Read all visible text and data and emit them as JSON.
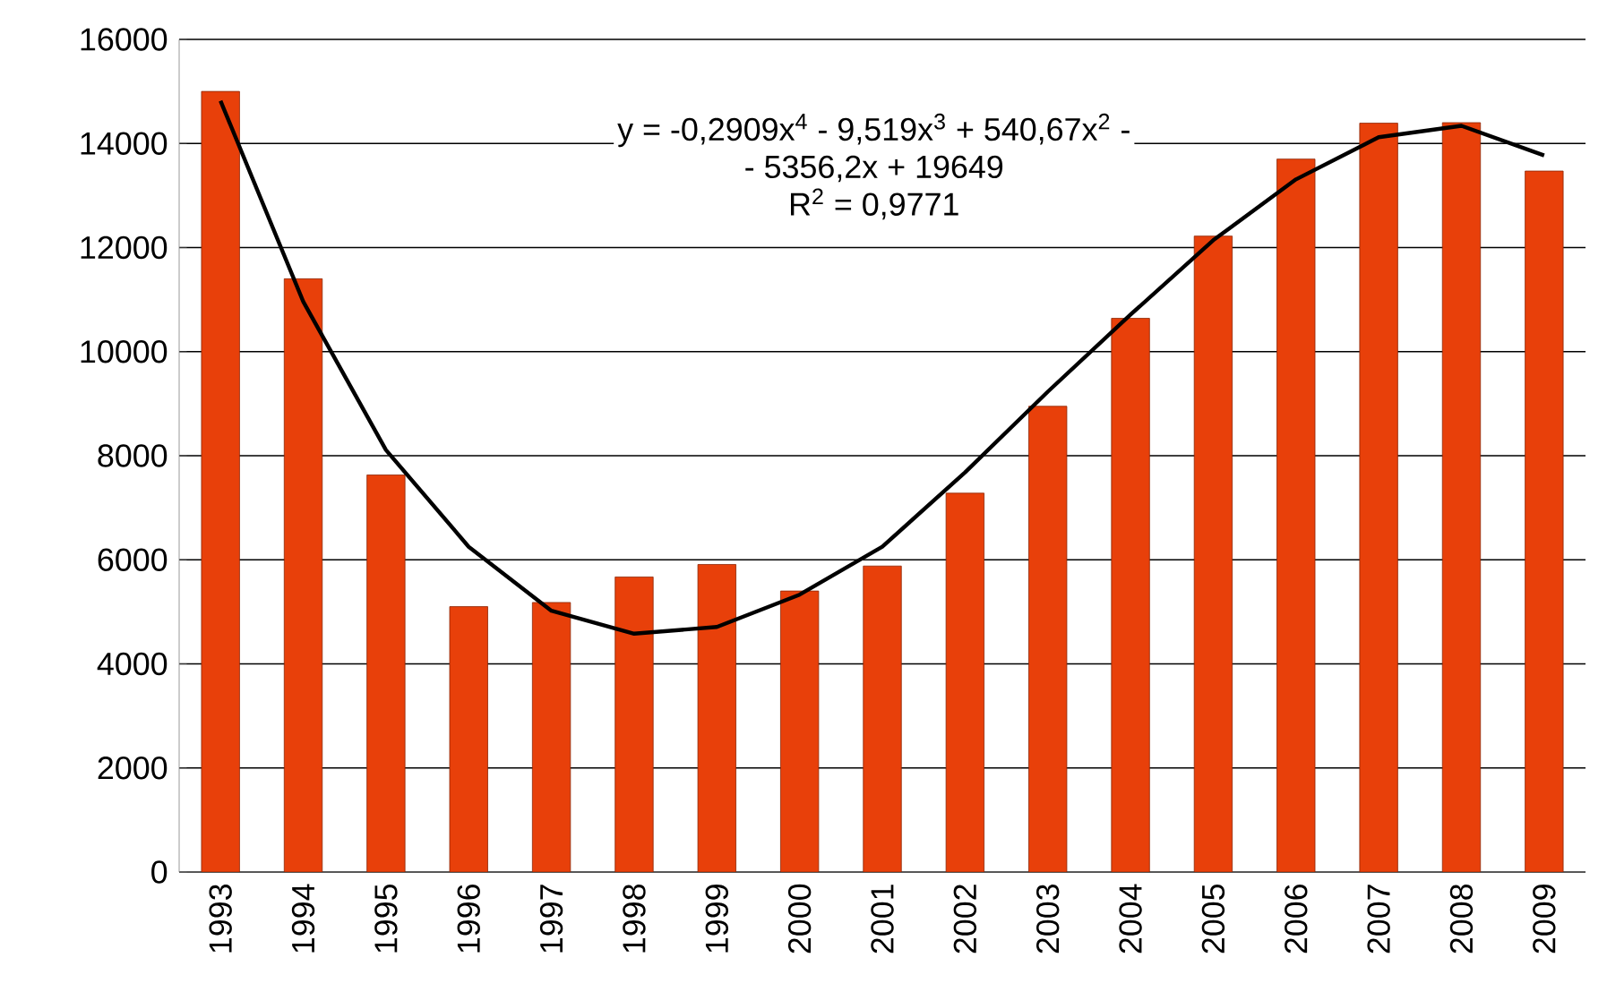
{
  "chart_data": {
    "type": "bar",
    "categories": [
      "1993",
      "1994",
      "1995",
      "1996",
      "1997",
      "1998",
      "1999",
      "2000",
      "2001",
      "2002",
      "2003",
      "2004",
      "2005",
      "2006",
      "2007",
      "2008",
      "2009"
    ],
    "series": [
      {
        "color": "#e8400a",
        "values": [
          15000,
          11400,
          7630,
          5100,
          5180,
          5670,
          5910,
          5400,
          5880,
          7280,
          8950,
          10640,
          12220,
          13700,
          14390,
          14400,
          13470
        ]
      },
      {
        "type": "line",
        "color": "#000000",
        "values": [
          14820,
          10960,
          8110,
          6250,
          5020,
          4580,
          4710,
          5330,
          6250,
          7680,
          9230,
          10710,
          12140,
          13310,
          14120,
          14340,
          13770
        ]
      }
    ],
    "ylim": [
      0,
      16000
    ],
    "yticks": [
      0,
      2000,
      4000,
      6000,
      8000,
      10000,
      12000,
      14000,
      16000
    ],
    "grid": "y",
    "marker": "none",
    "line_style": "solid",
    "annotations": [
      "y = -0,2909x$^{4}$ - 9,519x$^{3}$ + 540,67x$^{2}$ -",
      "- 5356,2x + 19649",
      "R$^{2}$ = 0,9771"
    ]
  }
}
